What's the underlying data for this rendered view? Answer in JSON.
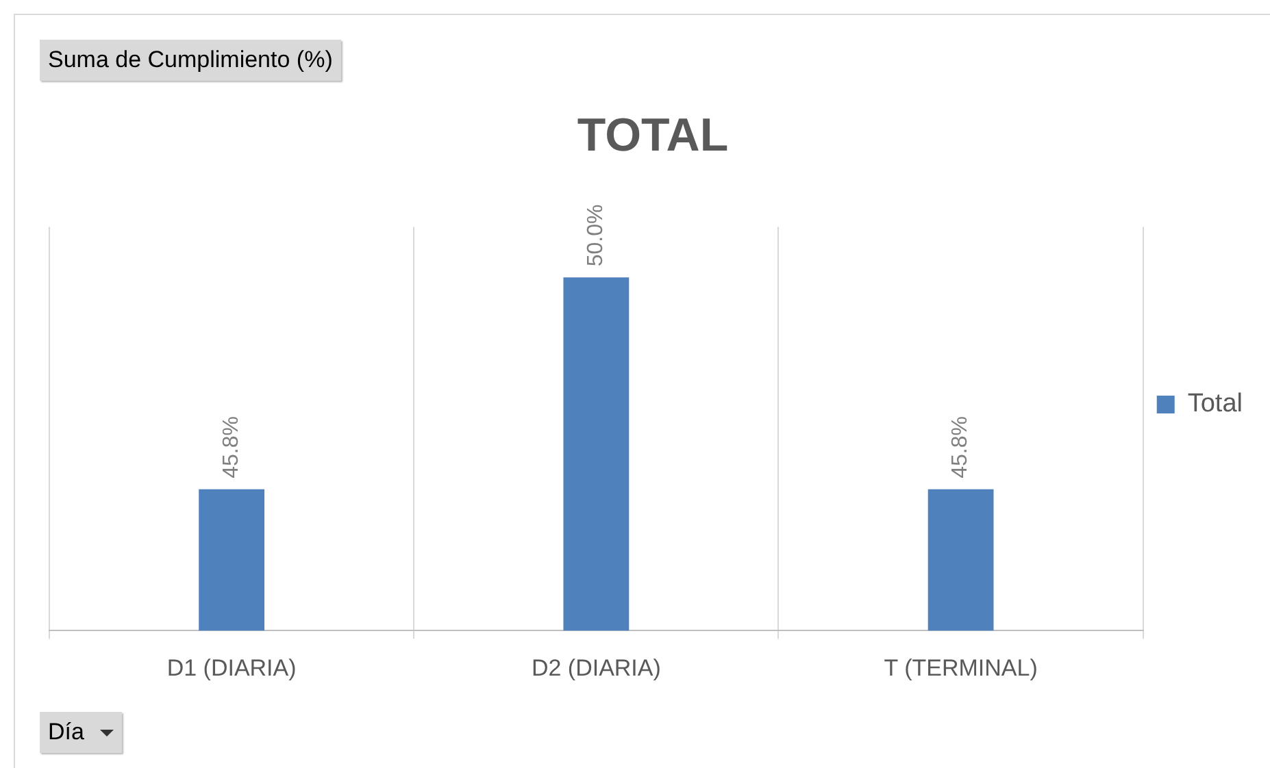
{
  "chart_data": {
    "type": "bar",
    "title": "TOTAL",
    "categories": [
      "D1 (DIARIA)",
      "D2 (DIARIA)",
      "T (TERMINAL)"
    ],
    "series": [
      {
        "name": "Total",
        "color": "#4f81bd",
        "values": [
          45.8,
          50.0,
          45.8
        ],
        "value_labels": [
          "45.8%",
          "50.0%",
          "45.8%"
        ]
      }
    ],
    "ylim": [
      43,
      51
    ],
    "grid": "x",
    "legend": "right",
    "annotations": [
      "Suma de Cumplimiento (%)",
      "Día"
    ]
  }
}
